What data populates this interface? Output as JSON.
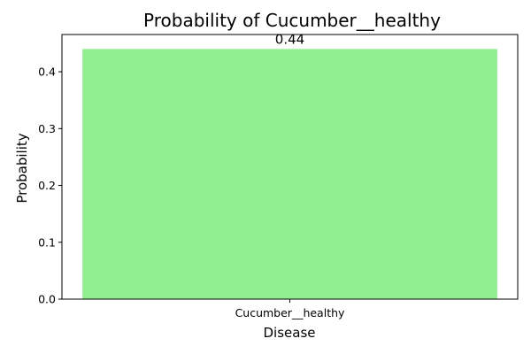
{
  "chart_data": {
    "type": "bar",
    "title": "Probability of Cucumber__healthy",
    "xlabel": "Disease",
    "ylabel": "Probability",
    "categories": [
      "Cucumber__healthy"
    ],
    "values": [
      0.44
    ],
    "data_labels": [
      "0.44"
    ],
    "ylim": [
      0,
      0.4655
    ],
    "yticks": [
      0.0,
      0.1,
      0.2,
      0.3,
      0.4
    ],
    "ytick_labels": [
      "0.0",
      "0.1",
      "0.2",
      "0.3",
      "0.4"
    ],
    "bar_color": "#90ee90",
    "grid": false,
    "legend": "none"
  }
}
